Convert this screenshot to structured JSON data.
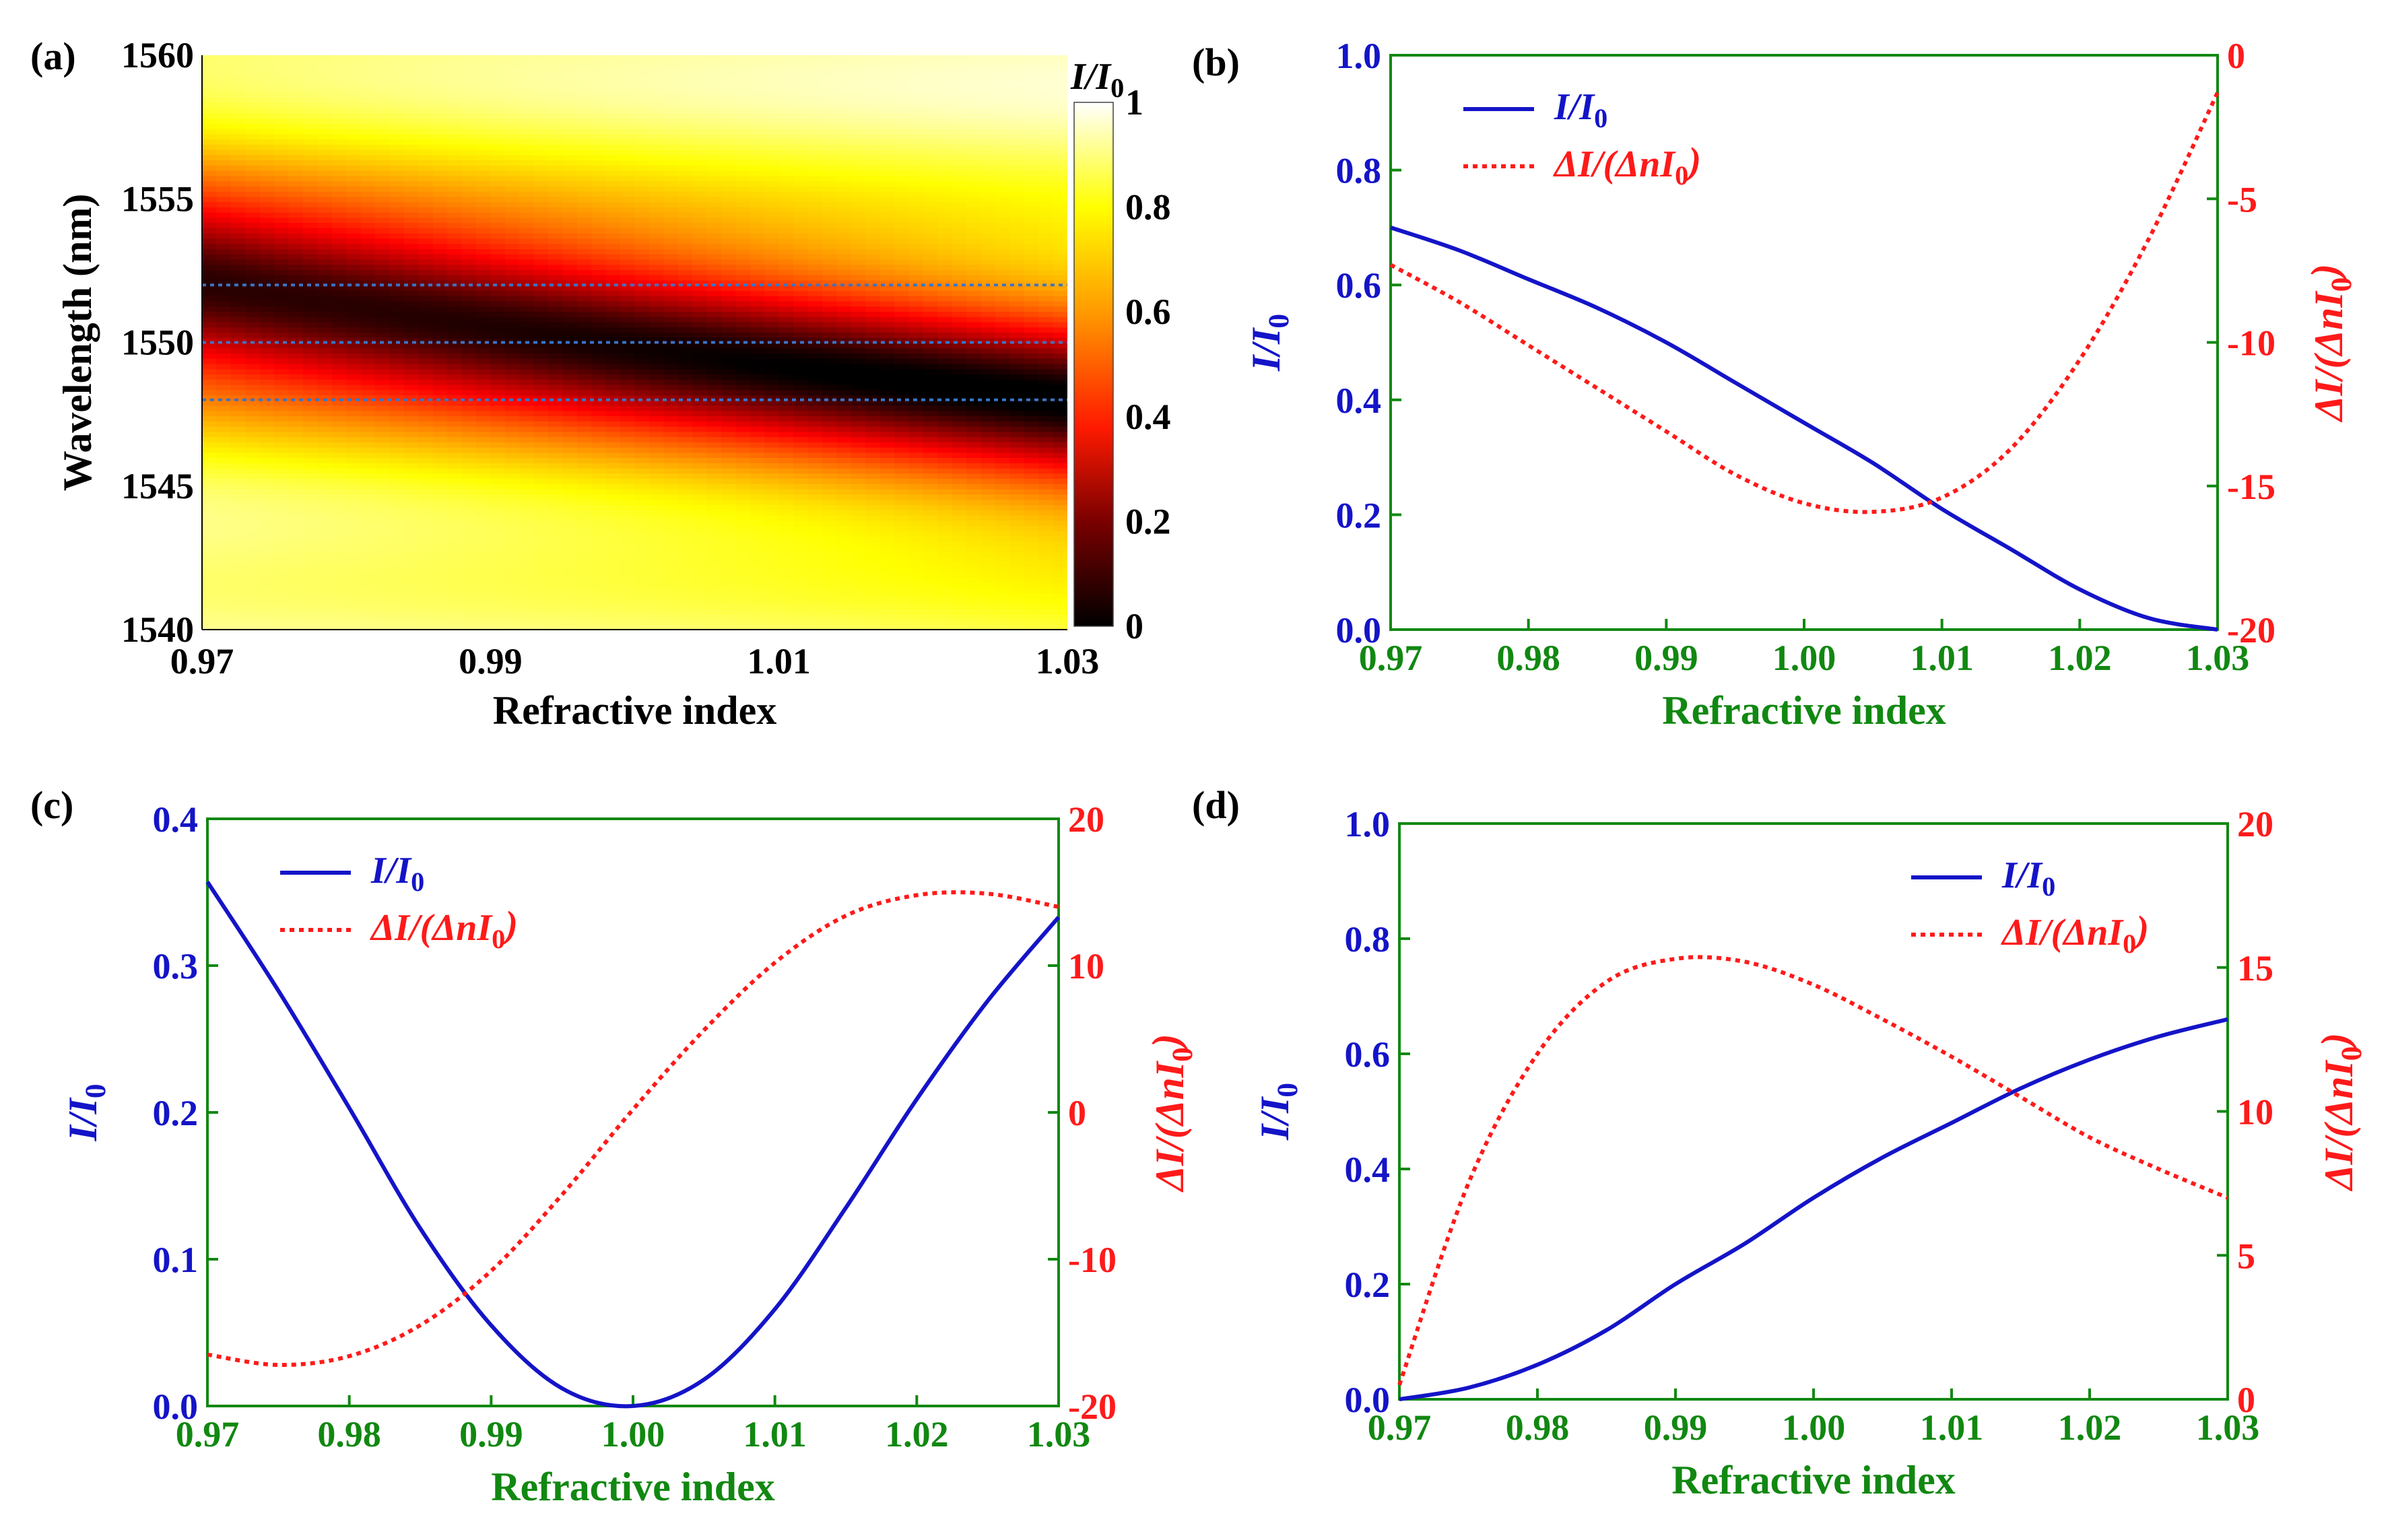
{
  "colors": {
    "blue": "#1414c8",
    "red": "#ff1a1a",
    "green": "#118811",
    "black": "#000000",
    "guide": "#3a74c8"
  },
  "chart_data": [
    {
      "id": "a",
      "panel_label": "(a)",
      "type": "heatmap",
      "xlabel": "Refractive index",
      "ylabel": "Wavelength (nm)",
      "xlim": [
        0.97,
        1.03
      ],
      "ylim": [
        1540,
        1560
      ],
      "xticks": [
        0.97,
        0.99,
        1.01,
        1.03
      ],
      "xtick_labels": [
        "0.97",
        "0.99",
        "1.01",
        "1.03"
      ],
      "yticks": [
        1540,
        1545,
        1550,
        1555,
        1560
      ],
      "ytick_labels": [
        "1540",
        "1545",
        "1550",
        "1555",
        "1560"
      ],
      "colorbar": {
        "title": "I/I0",
        "range": [
          0,
          1
        ],
        "ticks": [
          0,
          0.2,
          0.4,
          0.6,
          0.8,
          1
        ],
        "tick_labels": [
          "0",
          "0.2",
          "0.4",
          "0.6",
          "0.8",
          "1"
        ],
        "colormap": "hot"
      },
      "dip_center": {
        "x": [
          0.97,
          1.03
        ],
        "wavelength": [
          1552,
          1548
        ]
      },
      "guide_lines": [
        1552,
        1550,
        1548
      ]
    },
    {
      "id": "b",
      "panel_label": "(b)",
      "type": "line",
      "xlabel": "Refractive index",
      "ylabel_left": "I/I0",
      "ylabel_right": "ΔI/(ΔnI0)",
      "xlim": [
        0.97,
        1.03
      ],
      "ylim_left": [
        0,
        1
      ],
      "ylim_right": [
        -20,
        0
      ],
      "xticks": [
        0.97,
        0.98,
        0.99,
        1.0,
        1.01,
        1.02,
        1.03
      ],
      "xtick_labels": [
        "0.97",
        "0.98",
        "0.99",
        "1.00",
        "1.01",
        "1.02",
        "1.03"
      ],
      "yticks_left": [
        0,
        0.2,
        0.4,
        0.6,
        0.8,
        1.0
      ],
      "ytick_labels_left": [
        "0.0",
        "0.2",
        "0.4",
        "0.6",
        "0.8",
        "1.0"
      ],
      "yticks_right": [
        -20,
        -15,
        -10,
        -5,
        0
      ],
      "ytick_labels_right": [
        "-20",
        "-15",
        "-10",
        "-5",
        "0"
      ],
      "legend_position": "top-left",
      "series": [
        {
          "name": "I/I0",
          "axis": "left",
          "style": "solid",
          "x": [
            0.97,
            0.975,
            0.98,
            0.985,
            0.99,
            0.995,
            1.0,
            1.005,
            1.01,
            1.015,
            1.02,
            1.025,
            1.03
          ],
          "y": [
            0.7,
            0.66,
            0.61,
            0.56,
            0.5,
            0.43,
            0.36,
            0.29,
            0.21,
            0.14,
            0.07,
            0.02,
            0.0
          ]
        },
        {
          "name": "ΔI/(ΔnI0)",
          "axis": "right",
          "style": "dotted",
          "x": [
            0.97,
            0.975,
            0.98,
            0.985,
            0.99,
            0.995,
            1.0,
            1.005,
            1.01,
            1.015,
            1.02,
            1.025,
            1.03
          ],
          "y": [
            -7.3,
            -8.6,
            -10.1,
            -11.6,
            -13.1,
            -14.6,
            -15.6,
            -15.9,
            -15.4,
            -13.7,
            -10.6,
            -6.4,
            -1.3
          ]
        }
      ]
    },
    {
      "id": "c",
      "panel_label": "(c)",
      "type": "line",
      "xlabel": "Refractive index",
      "ylabel_left": "I/I0",
      "ylabel_right": "ΔI/(ΔnI0)",
      "xlim": [
        0.97,
        1.03
      ],
      "ylim_left": [
        0,
        0.4
      ],
      "ylim_right": [
        -20,
        20
      ],
      "xticks": [
        0.97,
        0.98,
        0.99,
        1.0,
        1.01,
        1.02,
        1.03
      ],
      "xtick_labels": [
        "0.97",
        "0.98",
        "0.99",
        "1.00",
        "1.01",
        "1.02",
        "1.03"
      ],
      "yticks_left": [
        0,
        0.1,
        0.2,
        0.3,
        0.4
      ],
      "ytick_labels_left": [
        "0.0",
        "0.1",
        "0.2",
        "0.3",
        "0.4"
      ],
      "yticks_right": [
        -20,
        -10,
        0,
        10,
        20
      ],
      "ytick_labels_right": [
        "-20",
        "-10",
        "0",
        "10",
        "20"
      ],
      "legend_position": "top-left",
      "series": [
        {
          "name": "I/I0",
          "axis": "left",
          "style": "solid",
          "x": [
            0.97,
            0.975,
            0.98,
            0.985,
            0.99,
            0.995,
            1.0,
            1.005,
            1.01,
            1.015,
            1.02,
            1.025,
            1.03
          ],
          "y": [
            0.357,
            0.283,
            0.203,
            0.121,
            0.055,
            0.012,
            0.0,
            0.018,
            0.066,
            0.135,
            0.209,
            0.276,
            0.333
          ]
        },
        {
          "name": "ΔI/(ΔnI0)",
          "axis": "right",
          "style": "dotted",
          "x": [
            0.97,
            0.975,
            0.98,
            0.985,
            0.99,
            0.995,
            1.0,
            1.005,
            1.01,
            1.015,
            1.02,
            1.025,
            1.03
          ],
          "y": [
            -16.5,
            -17.2,
            -16.6,
            -14.5,
            -10.8,
            -5.6,
            0.2,
            5.6,
            10.2,
            13.4,
            14.8,
            14.9,
            14.0
          ]
        }
      ]
    },
    {
      "id": "d",
      "panel_label": "(d)",
      "type": "line",
      "xlabel": "Refractive index",
      "ylabel_left": "I/I0",
      "ylabel_right": "ΔI/(ΔnI0)",
      "xlim": [
        0.97,
        1.03
      ],
      "ylim_left": [
        0,
        1
      ],
      "ylim_right": [
        0,
        20
      ],
      "xticks": [
        0.97,
        0.98,
        0.99,
        1.0,
        1.01,
        1.02,
        1.03
      ],
      "xtick_labels": [
        "0.97",
        "0.98",
        "0.99",
        "1.00",
        "1.01",
        "1.02",
        "1.03"
      ],
      "yticks_left": [
        0,
        0.2,
        0.4,
        0.6,
        0.8,
        1.0
      ],
      "ytick_labels_left": [
        "0.0",
        "0.2",
        "0.4",
        "0.6",
        "0.8",
        "1.0"
      ],
      "yticks_right": [
        0,
        5,
        10,
        15,
        20
      ],
      "ytick_labels_right": [
        "0",
        "5",
        "10",
        "15",
        "20"
      ],
      "legend_position": "top-right",
      "series": [
        {
          "name": "I/I0",
          "axis": "left",
          "style": "solid",
          "x": [
            0.97,
            0.975,
            0.98,
            0.985,
            0.99,
            0.995,
            1.0,
            1.005,
            1.01,
            1.015,
            1.02,
            1.025,
            1.03
          ],
          "y": [
            0.0,
            0.02,
            0.06,
            0.12,
            0.2,
            0.27,
            0.35,
            0.42,
            0.48,
            0.54,
            0.59,
            0.63,
            0.66
          ]
        },
        {
          "name": "ΔI/(ΔnI0)",
          "axis": "right",
          "style": "dotted",
          "x": [
            0.97,
            0.975,
            0.98,
            0.985,
            0.99,
            0.995,
            1.0,
            1.005,
            1.01,
            1.015,
            1.02,
            1.025,
            1.03
          ],
          "y": [
            0.5,
            7.5,
            12.0,
            14.5,
            15.3,
            15.2,
            14.4,
            13.2,
            11.9,
            10.5,
            9.1,
            8.0,
            7.0
          ]
        }
      ]
    }
  ]
}
